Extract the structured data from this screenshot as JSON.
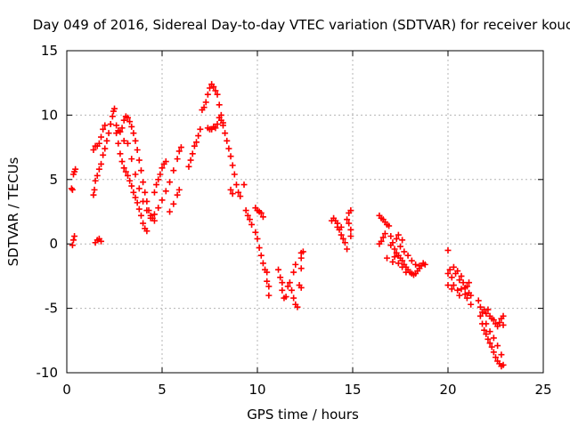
{
  "chart_data": {
    "type": "scatter",
    "title": "Day 049 of 2016, Sidereal Day-to-day VTEC variation (SDTVAR) for receiver kouc",
    "xlabel": "GPS time / hours",
    "ylabel": "SDTVAR / TECUs",
    "xlim": [
      0,
      25
    ],
    "ylim": [
      -10,
      15
    ],
    "xticks": [
      0,
      5,
      10,
      15,
      20,
      25
    ],
    "yticks": [
      -10,
      -5,
      0,
      5,
      10,
      15
    ],
    "grid": true,
    "marker": "+",
    "color": "#ff0000",
    "series": [
      {
        "name": "SDTVAR",
        "points": [
          [
            0.25,
            4.3
          ],
          [
            0.3,
            4.2
          ],
          [
            0.35,
            5.4
          ],
          [
            0.4,
            5.6
          ],
          [
            0.45,
            5.8
          ],
          [
            0.3,
            -0.1
          ],
          [
            0.35,
            0.3
          ],
          [
            0.4,
            0.6
          ],
          [
            1.4,
            3.8
          ],
          [
            1.45,
            4.2
          ],
          [
            1.5,
            4.9
          ],
          [
            1.6,
            5.3
          ],
          [
            1.7,
            5.8
          ],
          [
            1.8,
            6.2
          ],
          [
            1.9,
            6.9
          ],
          [
            2.0,
            7.4
          ],
          [
            2.1,
            8.0
          ],
          [
            2.2,
            8.6
          ],
          [
            2.3,
            9.3
          ],
          [
            2.4,
            9.9
          ],
          [
            2.45,
            10.3
          ],
          [
            2.5,
            10.5
          ],
          [
            1.4,
            7.3
          ],
          [
            1.5,
            7.6
          ],
          [
            1.6,
            7.6
          ],
          [
            1.7,
            7.8
          ],
          [
            1.8,
            8.3
          ],
          [
            1.9,
            8.9
          ],
          [
            2.0,
            9.2
          ],
          [
            1.5,
            0.1
          ],
          [
            1.6,
            0.3
          ],
          [
            1.7,
            0.4
          ],
          [
            1.8,
            0.2
          ],
          [
            2.6,
            9.2
          ],
          [
            2.7,
            8.8
          ],
          [
            2.8,
            8.7
          ],
          [
            2.9,
            9.0
          ],
          [
            3.0,
            9.6
          ],
          [
            3.1,
            9.9
          ],
          [
            3.2,
            9.8
          ],
          [
            3.3,
            9.5
          ],
          [
            3.4,
            9.1
          ],
          [
            3.5,
            8.6
          ],
          [
            3.6,
            8.0
          ],
          [
            3.7,
            7.3
          ],
          [
            3.8,
            6.5
          ],
          [
            3.9,
            5.7
          ],
          [
            4.0,
            4.8
          ],
          [
            4.1,
            4.0
          ],
          [
            4.2,
            3.3
          ],
          [
            4.3,
            2.6
          ],
          [
            4.4,
            2.2
          ],
          [
            4.5,
            2.0
          ],
          [
            2.6,
            8.6
          ],
          [
            2.7,
            7.8
          ],
          [
            2.8,
            7.0
          ],
          [
            2.9,
            6.4
          ],
          [
            3.0,
            5.9
          ],
          [
            3.1,
            5.6
          ],
          [
            3.2,
            5.3
          ],
          [
            3.3,
            4.9
          ],
          [
            3.4,
            4.5
          ],
          [
            3.5,
            4.0
          ],
          [
            3.6,
            3.6
          ],
          [
            3.7,
            3.2
          ],
          [
            3.8,
            2.7
          ],
          [
            3.9,
            2.2
          ],
          [
            4.0,
            1.6
          ],
          [
            4.1,
            1.2
          ],
          [
            4.2,
            1.0
          ],
          [
            3.0,
            8.0
          ],
          [
            3.2,
            7.8
          ],
          [
            3.4,
            6.6
          ],
          [
            3.6,
            5.4
          ],
          [
            3.8,
            4.3
          ],
          [
            4.0,
            3.3
          ],
          [
            4.2,
            2.6
          ],
          [
            4.4,
            2.0
          ],
          [
            4.6,
            1.8
          ],
          [
            4.6,
            4.0
          ],
          [
            4.7,
            4.6
          ],
          [
            4.8,
            5.0
          ],
          [
            4.9,
            5.4
          ],
          [
            5.0,
            5.9
          ],
          [
            5.1,
            6.2
          ],
          [
            5.2,
            6.4
          ],
          [
            4.6,
            2.3
          ],
          [
            4.8,
            2.8
          ],
          [
            5.0,
            3.4
          ],
          [
            5.2,
            4.1
          ],
          [
            5.4,
            4.8
          ],
          [
            5.6,
            5.7
          ],
          [
            5.8,
            6.6
          ],
          [
            5.9,
            7.2
          ],
          [
            6.0,
            7.5
          ],
          [
            5.4,
            2.5
          ],
          [
            5.6,
            3.1
          ],
          [
            5.8,
            3.8
          ],
          [
            5.9,
            4.2
          ],
          [
            6.4,
            6.0
          ],
          [
            6.5,
            6.5
          ],
          [
            6.6,
            7.0
          ],
          [
            6.7,
            7.6
          ],
          [
            6.8,
            7.9
          ],
          [
            6.9,
            8.4
          ],
          [
            7.0,
            8.9
          ],
          [
            7.1,
            10.4
          ],
          [
            7.2,
            10.6
          ],
          [
            7.3,
            11.0
          ],
          [
            7.4,
            11.6
          ],
          [
            7.5,
            12.1
          ],
          [
            7.6,
            12.4
          ],
          [
            7.7,
            12.2
          ],
          [
            7.8,
            11.9
          ],
          [
            7.9,
            11.6
          ],
          [
            8.0,
            10.8
          ],
          [
            8.1,
            10.0
          ],
          [
            8.2,
            9.4
          ],
          [
            7.4,
            9.0
          ],
          [
            7.5,
            8.9
          ],
          [
            7.6,
            8.9
          ],
          [
            7.7,
            9.1
          ],
          [
            7.8,
            9.0
          ],
          [
            7.9,
            9.3
          ],
          [
            8.0,
            9.8
          ],
          [
            8.1,
            9.6
          ],
          [
            8.2,
            9.2
          ],
          [
            8.3,
            8.6
          ],
          [
            8.4,
            8.0
          ],
          [
            8.5,
            7.4
          ],
          [
            8.6,
            6.8
          ],
          [
            8.7,
            6.1
          ],
          [
            8.8,
            5.4
          ],
          [
            8.9,
            4.6
          ],
          [
            9.0,
            4.0
          ],
          [
            9.1,
            3.7
          ],
          [
            8.6,
            4.2
          ],
          [
            8.7,
            3.9
          ],
          [
            9.3,
            4.6
          ],
          [
            9.4,
            2.6
          ],
          [
            9.5,
            2.2
          ],
          [
            9.6,
            1.9
          ],
          [
            9.7,
            1.5
          ],
          [
            9.9,
            2.8
          ],
          [
            10.0,
            2.6
          ],
          [
            10.1,
            2.5
          ],
          [
            10.2,
            2.4
          ],
          [
            10.3,
            2.1
          ],
          [
            9.9,
            0.9
          ],
          [
            10.0,
            0.4
          ],
          [
            10.1,
            -0.3
          ],
          [
            10.2,
            -0.9
          ],
          [
            10.3,
            -1.5
          ],
          [
            10.4,
            -2.0
          ],
          [
            10.5,
            -2.2
          ],
          [
            10.5,
            -2.9
          ],
          [
            10.6,
            -3.3
          ],
          [
            10.6,
            -4.0
          ],
          [
            11.1,
            -2.0
          ],
          [
            11.2,
            -2.6
          ],
          [
            11.3,
            -3.0
          ],
          [
            11.3,
            -3.6
          ],
          [
            11.4,
            -4.2
          ],
          [
            11.5,
            -4.1
          ],
          [
            11.6,
            -3.3
          ],
          [
            11.7,
            -3.0
          ],
          [
            11.8,
            -3.6
          ],
          [
            11.9,
            -4.2
          ],
          [
            12.0,
            -4.7
          ],
          [
            12.1,
            -4.9
          ],
          [
            12.3,
            -0.7
          ],
          [
            12.4,
            -0.6
          ],
          [
            12.3,
            -1.1
          ],
          [
            12.3,
            -1.9
          ],
          [
            12.2,
            -3.2
          ],
          [
            12.3,
            -3.4
          ],
          [
            12.0,
            -1.6
          ],
          [
            11.9,
            -2.2
          ],
          [
            13.9,
            1.8
          ],
          [
            14.0,
            2.0
          ],
          [
            14.1,
            1.8
          ],
          [
            14.2,
            1.6
          ],
          [
            14.3,
            1.1
          ],
          [
            14.4,
            0.7
          ],
          [
            14.5,
            0.4
          ],
          [
            14.6,
            0.1
          ],
          [
            14.7,
            -0.4
          ],
          [
            14.2,
            1.3
          ],
          [
            14.4,
            1.3
          ],
          [
            14.7,
            1.9
          ],
          [
            14.8,
            2.4
          ],
          [
            14.9,
            2.6
          ],
          [
            14.8,
            1.6
          ],
          [
            14.9,
            1.1
          ],
          [
            14.9,
            0.6
          ],
          [
            16.4,
            2.2
          ],
          [
            16.5,
            2.0
          ],
          [
            16.6,
            1.9
          ],
          [
            16.7,
            1.7
          ],
          [
            16.8,
            1.5
          ],
          [
            16.5,
            0.2
          ],
          [
            16.6,
            0.5
          ],
          [
            16.7,
            0.8
          ],
          [
            16.4,
            0.0
          ],
          [
            16.9,
            1.4
          ],
          [
            17.0,
            0.6
          ],
          [
            17.1,
            0.1
          ],
          [
            17.2,
            -0.4
          ],
          [
            17.3,
            -0.7
          ],
          [
            17.4,
            -0.9
          ],
          [
            17.5,
            -1.1
          ],
          [
            17.6,
            -1.3
          ],
          [
            17.7,
            -1.6
          ],
          [
            17.8,
            -1.8
          ],
          [
            17.9,
            -2.0
          ],
          [
            18.0,
            -2.2
          ],
          [
            18.1,
            -2.3
          ],
          [
            18.2,
            -2.4
          ],
          [
            18.3,
            -2.3
          ],
          [
            18.4,
            -2.1
          ],
          [
            18.5,
            -1.9
          ],
          [
            18.6,
            -1.7
          ],
          [
            18.7,
            -1.5
          ],
          [
            18.8,
            -1.6
          ],
          [
            17.0,
            -0.1
          ],
          [
            17.2,
            -1.0
          ],
          [
            17.4,
            -1.5
          ],
          [
            17.6,
            -1.8
          ],
          [
            17.8,
            -2.2
          ],
          [
            17.3,
            0.4
          ],
          [
            17.5,
            -0.2
          ],
          [
            17.7,
            -0.6
          ],
          [
            17.9,
            -0.9
          ],
          [
            18.1,
            -1.3
          ],
          [
            18.3,
            -1.6
          ],
          [
            18.5,
            -1.7
          ],
          [
            17.1,
            -1.4
          ],
          [
            16.8,
            -1.1
          ],
          [
            17.4,
            0.7
          ],
          [
            17.6,
            0.3
          ],
          [
            20.0,
            -0.5
          ],
          [
            20.0,
            -2.3
          ],
          [
            20.0,
            -3.2
          ],
          [
            20.1,
            -2.0
          ],
          [
            20.2,
            -2.6
          ],
          [
            20.2,
            -3.5
          ],
          [
            20.3,
            -3.2
          ],
          [
            20.3,
            -1.8
          ],
          [
            20.4,
            -2.3
          ],
          [
            20.5,
            -2.1
          ],
          [
            20.5,
            -3.6
          ],
          [
            20.6,
            -4.0
          ],
          [
            20.6,
            -2.8
          ],
          [
            20.7,
            -2.5
          ],
          [
            20.8,
            -3.0
          ],
          [
            20.9,
            -3.4
          ],
          [
            20.9,
            -3.9
          ],
          [
            21.0,
            -4.2
          ],
          [
            21.0,
            -3.3
          ],
          [
            21.1,
            -3.0
          ],
          [
            21.1,
            -3.8
          ],
          [
            21.2,
            -4.0
          ],
          [
            21.2,
            -4.7
          ],
          [
            20.7,
            -3.5
          ],
          [
            21.6,
            -4.4
          ],
          [
            21.7,
            -4.9
          ],
          [
            21.8,
            -5.3
          ],
          [
            21.9,
            -5.1
          ],
          [
            22.0,
            -5.4
          ],
          [
            22.1,
            -5.1
          ],
          [
            22.2,
            -5.6
          ],
          [
            22.3,
            -5.8
          ],
          [
            22.4,
            -5.9
          ],
          [
            22.5,
            -6.2
          ],
          [
            22.6,
            -6.4
          ],
          [
            22.7,
            -6.1
          ],
          [
            22.8,
            -5.8
          ],
          [
            22.9,
            -5.6
          ],
          [
            22.9,
            -6.3
          ],
          [
            21.7,
            -5.6
          ],
          [
            21.8,
            -6.2
          ],
          [
            21.9,
            -6.7
          ],
          [
            22.0,
            -7.0
          ],
          [
            22.1,
            -7.4
          ],
          [
            22.2,
            -7.7
          ],
          [
            22.3,
            -8.0
          ],
          [
            22.4,
            -8.4
          ],
          [
            22.5,
            -8.8
          ],
          [
            22.6,
            -9.1
          ],
          [
            22.7,
            -9.3
          ],
          [
            22.8,
            -9.5
          ],
          [
            22.9,
            -9.4
          ],
          [
            22.0,
            -6.2
          ],
          [
            22.2,
            -6.8
          ],
          [
            22.4,
            -7.3
          ],
          [
            22.6,
            -7.9
          ],
          [
            22.8,
            -8.6
          ]
        ]
      }
    ]
  }
}
